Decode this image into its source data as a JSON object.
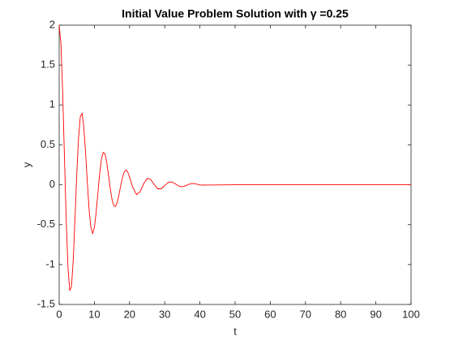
{
  "chart_data": {
    "type": "line",
    "title": "Initial Value Problem Solution with γ =0.25",
    "xlabel": "t",
    "ylabel": "y",
    "x": [
      0,
      0.5,
      1,
      1.5,
      2,
      2.5,
      3,
      3.5,
      4,
      4.5,
      5,
      5.5,
      6,
      6.5,
      7,
      7.5,
      8,
      8.5,
      9,
      9.5,
      10,
      10.5,
      11,
      11.5,
      12,
      12.5,
      13,
      13.5,
      14,
      14.5,
      15,
      15.5,
      16,
      16.5,
      17,
      17.5,
      18,
      18.5,
      19,
      19.5,
      20,
      21,
      22,
      23,
      24,
      25,
      26,
      27,
      28,
      29,
      30,
      31,
      32,
      33,
      34,
      35,
      36,
      37,
      38,
      39,
      40,
      50,
      60,
      70,
      80,
      90,
      100
    ],
    "series": [
      {
        "name": "y",
        "color": "#ff0000",
        "values": [
          2,
          1.765,
          1.151,
          0.345,
          -0.446,
          -1.04,
          -1.327,
          -1.275,
          -0.938,
          -0.42,
          0.132,
          0.584,
          0.854,
          0.894,
          0.722,
          0.404,
          0.031,
          -0.306,
          -0.533,
          -0.61,
          -0.538,
          -0.35,
          -0.105,
          0.137,
          0.318,
          0.405,
          0.389,
          0.285,
          0.127,
          -0.041,
          -0.18,
          -0.261,
          -0.273,
          -0.22,
          -0.124,
          -0.009,
          0.094,
          0.162,
          0.186,
          0.157,
          0.094,
          -0.042,
          -0.123,
          -0.087,
          0.012,
          0.08,
          0.067,
          0.003,
          -0.05,
          -0.05,
          -0.01,
          0.03,
          0.036,
          0.012,
          -0.017,
          -0.025,
          -0.011,
          0.009,
          0.017,
          0.01,
          -0.004,
          0,
          0,
          0,
          0,
          0,
          0
        ]
      }
    ],
    "xlim": [
      0,
      100
    ],
    "xticks": [
      0,
      10,
      20,
      30,
      40,
      50,
      60,
      70,
      80,
      90,
      100
    ],
    "ylim": [
      -1.5,
      2
    ],
    "yticks": [
      -1.5,
      -1,
      -0.5,
      0,
      0.5,
      1,
      1.5,
      2
    ],
    "grid": false
  }
}
